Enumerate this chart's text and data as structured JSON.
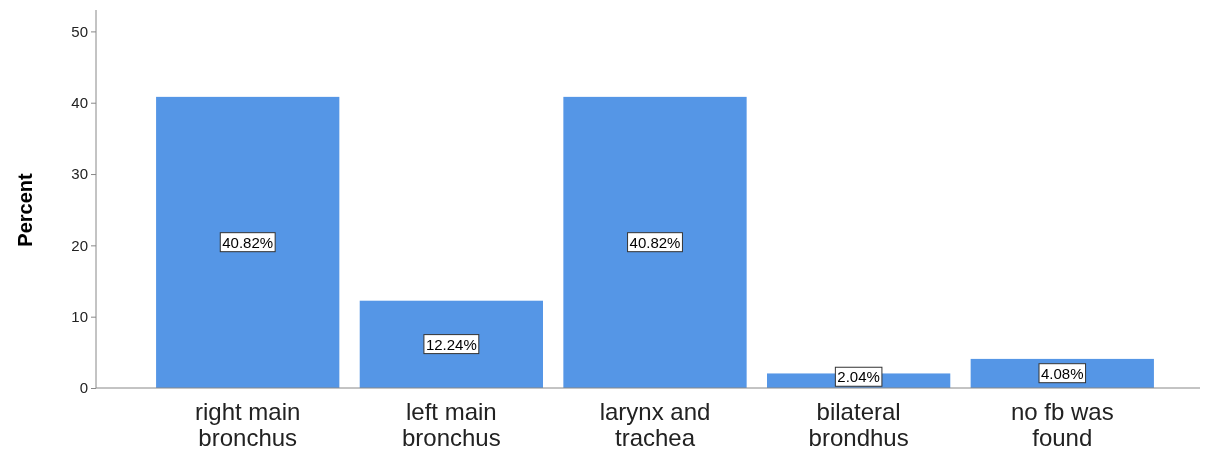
{
  "chart_data": {
    "type": "bar",
    "ylabel": "Percent",
    "categories": [
      "right main bronchus",
      "left main bronchus",
      "larynx and trachea",
      "bilateral brondhus",
      "no fb was found"
    ],
    "values": [
      40.82,
      12.24,
      40.82,
      2.04,
      4.08
    ],
    "value_labels": [
      "40.82%",
      "12.24%",
      "40.82%",
      "2.04%",
      "4.08%"
    ],
    "color": "#5596e6",
    "ylim": [
      0,
      53
    ],
    "yticks": [
      0,
      10,
      20,
      30,
      40,
      50
    ],
    "grid": false
  }
}
